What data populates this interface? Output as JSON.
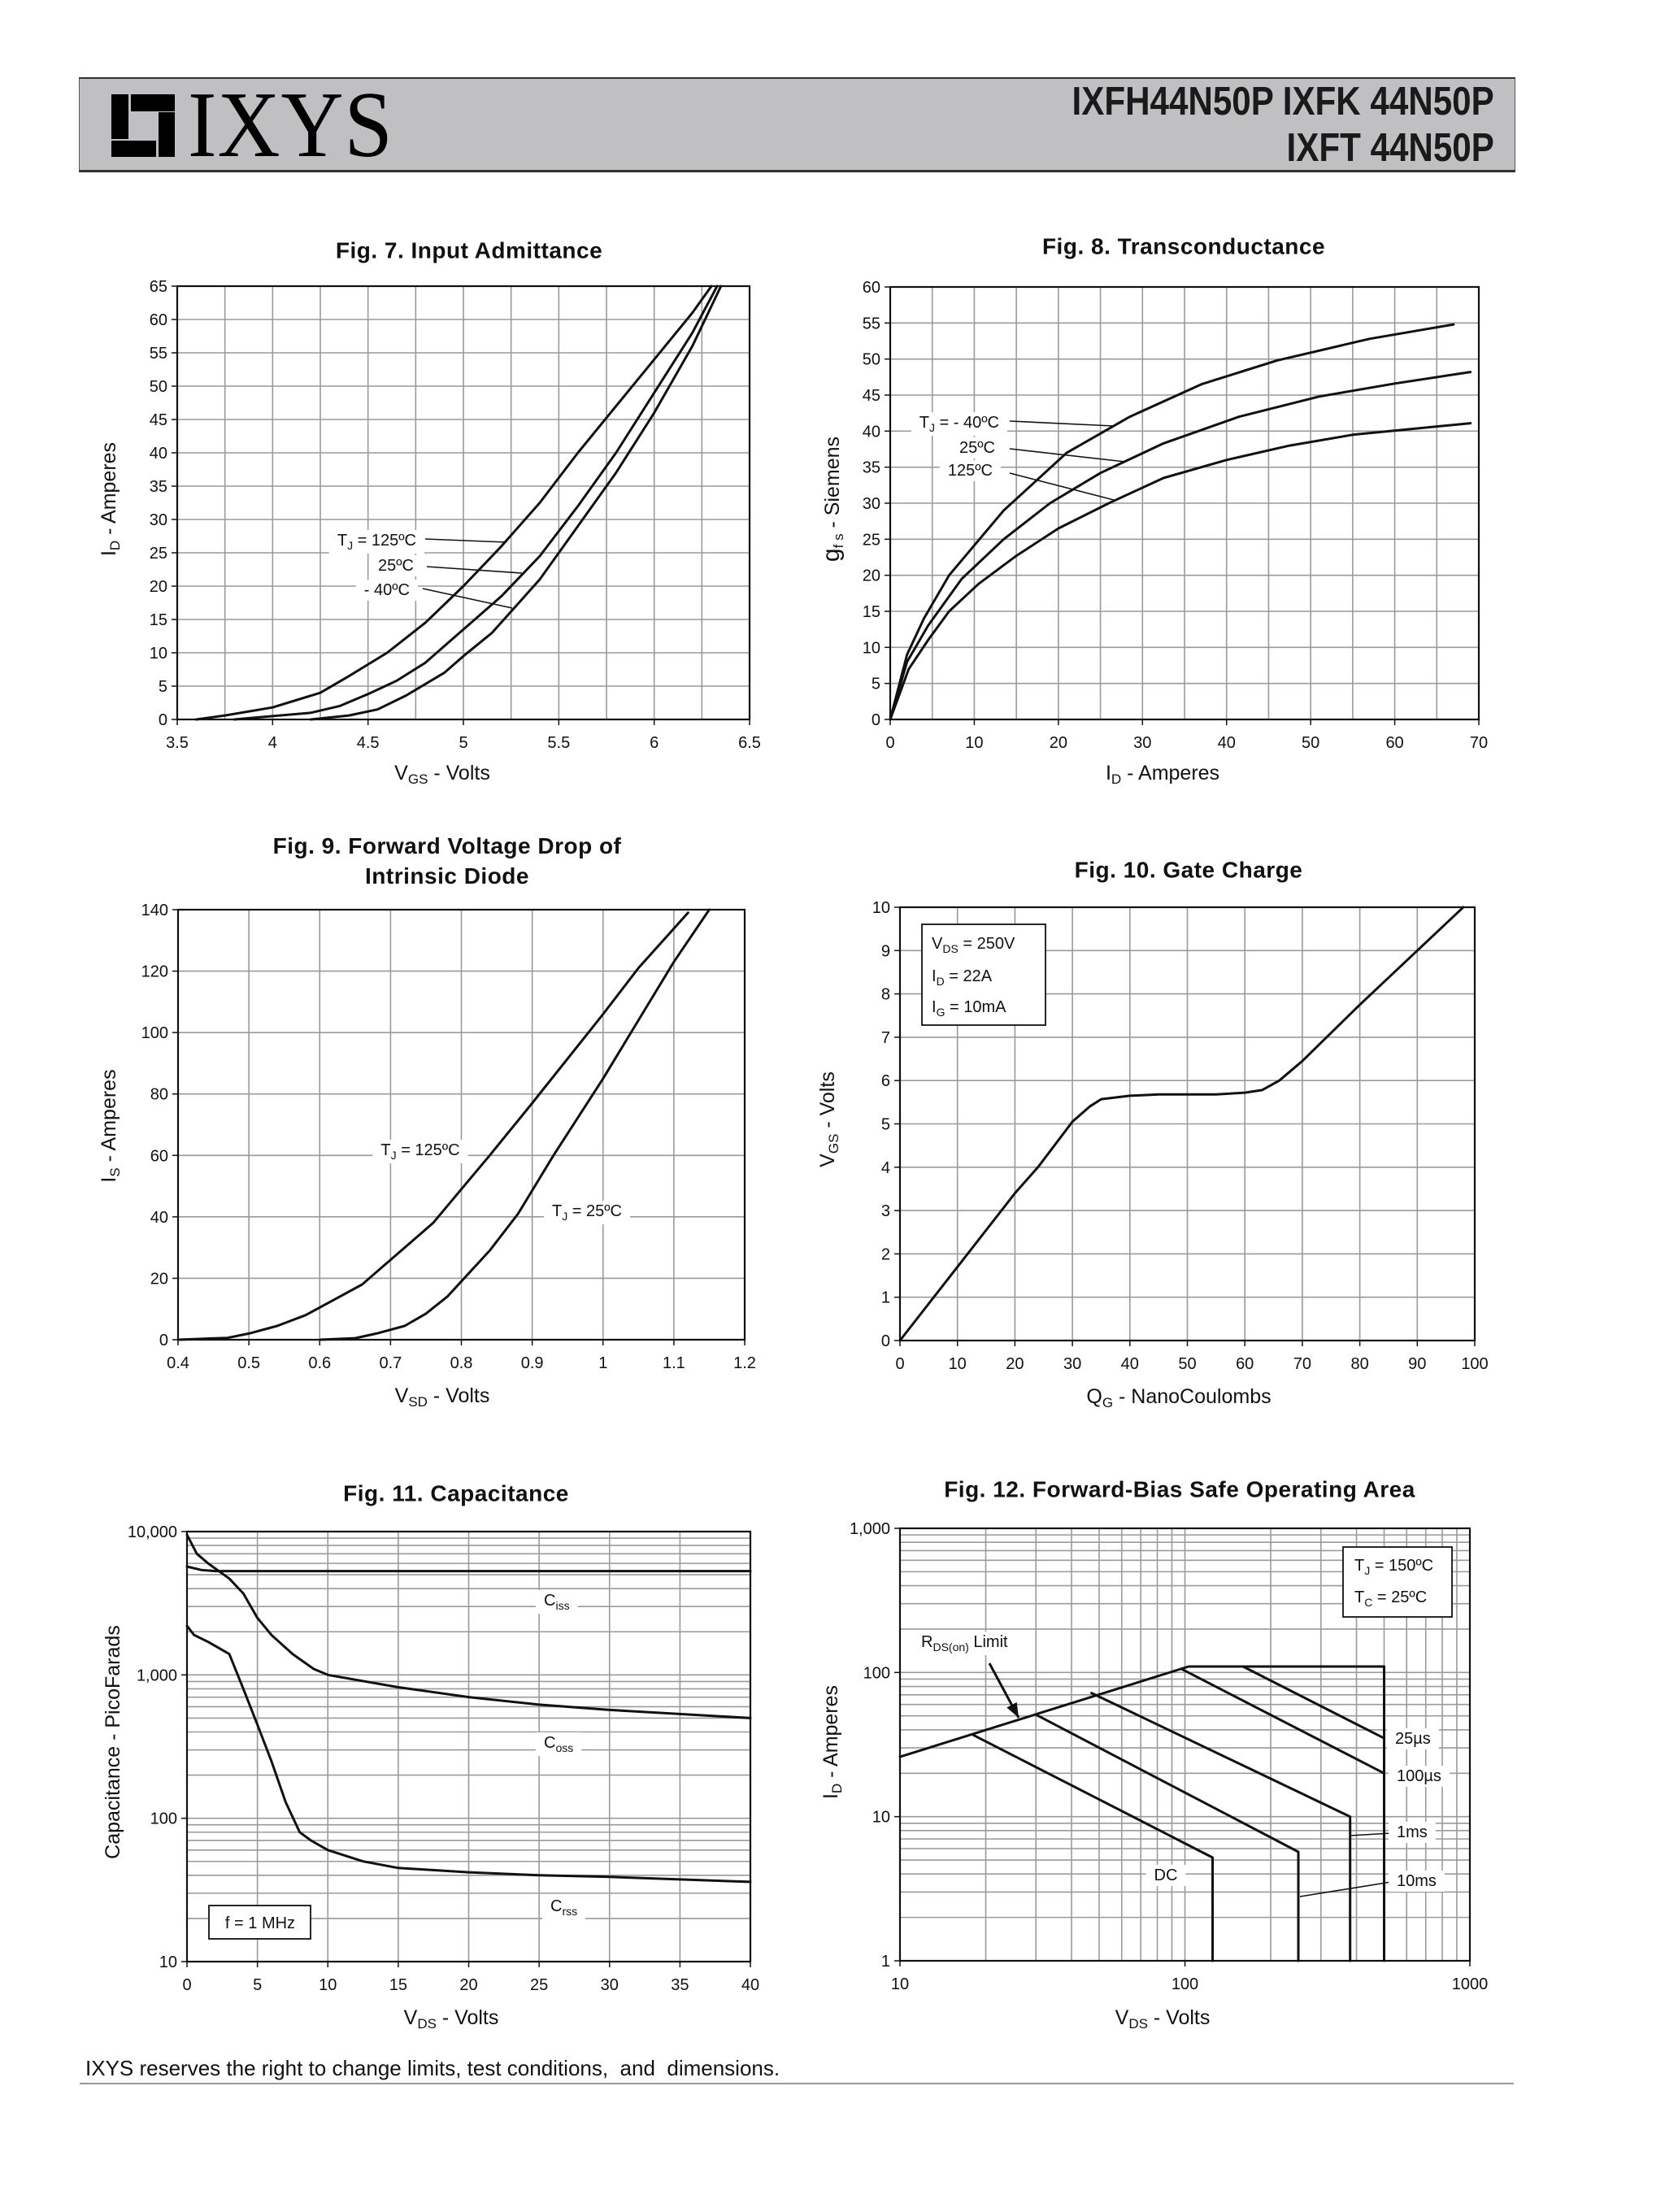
{
  "header": {
    "logo_text": "IXYS",
    "part_line1": "IXFH44N50P IXFK 44N50P",
    "part_line2": "IXFT 44N50P"
  },
  "footer": {
    "disclaimer": "IXYS reserves the right to change limits, test conditions,  and  dimensions."
  },
  "chart_data": [
    {
      "type": "line",
      "title": "Fig. 7. Input Admittance",
      "xlabel": {
        "main": "V",
        "sub": "GS",
        "rest": " - Volts"
      },
      "ylabel": {
        "main": "I",
        "sub": "D",
        "rest": " - Amperes"
      },
      "xscale": "linear",
      "yscale": "linear",
      "xlim": [
        3.5,
        6.5
      ],
      "ylim": [
        0,
        65
      ],
      "grid": true,
      "xticks": [
        3.5,
        4,
        4.5,
        5,
        5.5,
        6,
        6.5
      ],
      "xtick_labels": [
        "3.5",
        "4",
        "4.5",
        "5",
        "5.5",
        "6",
        "6.5"
      ],
      "yticks": [
        0,
        5,
        10,
        15,
        20,
        25,
        30,
        35,
        40,
        45,
        50,
        55,
        60,
        65
      ],
      "ytick_labels": [
        "0",
        "5",
        "10",
        "15",
        "20",
        "25",
        "30",
        "35",
        "40",
        "45",
        "50",
        "55",
        "60",
        "65"
      ],
      "series": [
        {
          "name": "TJ = 125ºC",
          "x": [
            3.6,
            3.75,
            4.0,
            4.25,
            4.4,
            4.6,
            4.8,
            5.0,
            5.2,
            5.4,
            5.6,
            5.8,
            6.0,
            6.2,
            6.3
          ],
          "y": [
            0,
            0.6,
            1.8,
            4,
            6.5,
            10,
            14.5,
            20,
            26,
            32.5,
            40,
            47,
            54,
            61,
            65
          ]
        },
        {
          "name": "25ºC",
          "x": [
            3.8,
            4.0,
            4.2,
            4.35,
            4.5,
            4.65,
            4.8,
            5.0,
            5.2,
            5.4,
            5.6,
            5.8,
            6.0,
            6.2,
            6.33
          ],
          "y": [
            0,
            0.5,
            1,
            2,
            3.8,
            5.8,
            8.5,
            13.5,
            18.5,
            24.5,
            32,
            40,
            49,
            58,
            65
          ]
        },
        {
          "name": "- 40ºC",
          "x": [
            4.2,
            4.4,
            4.55,
            4.7,
            4.9,
            5.0,
            5.15,
            5.4,
            5.6,
            5.8,
            6.0,
            6.2,
            6.35
          ],
          "y": [
            0,
            0.6,
            1.5,
            3.6,
            7,
            9.5,
            13,
            21,
            29,
            37,
            46,
            56,
            65
          ]
        }
      ],
      "annotations": [
        {
          "pre": "T",
          "sub": "J",
          "post": " = 125ºC"
        },
        {
          "pre": "25ºC",
          "sub": "",
          "post": ""
        },
        {
          "pre": "- 40ºC",
          "sub": "",
          "post": ""
        }
      ]
    },
    {
      "type": "line",
      "title": "Fig. 8. Transconductance",
      "xlabel": {
        "main": "I",
        "sub": "D",
        "rest": " - Amperes"
      },
      "ylabel": {
        "main": "g",
        "sub": "f s",
        "rest": " - Siemens"
      },
      "xscale": "linear",
      "yscale": "linear",
      "xlim": [
        0,
        70
      ],
      "ylim": [
        0,
        60
      ],
      "grid": true,
      "xticks": [
        0,
        10,
        20,
        30,
        40,
        50,
        60,
        70
      ],
      "xtick_labels": [
        "0",
        "10",
        "20",
        "30",
        "40",
        "50",
        "60",
        "70"
      ],
      "yticks": [
        0,
        5,
        10,
        15,
        20,
        25,
        30,
        35,
        40,
        45,
        50,
        55,
        60
      ],
      "ytick_labels": [
        "0",
        "5",
        "10",
        "15",
        "20",
        "25",
        "30",
        "35",
        "40",
        "45",
        "50",
        "55",
        "60"
      ],
      "series": [
        {
          "name": "TJ = - 40ºC",
          "x": [
            0,
            2,
            4,
            7,
            13.5,
            21,
            28.5,
            37,
            46,
            57,
            67
          ],
          "y": [
            0,
            9,
            14,
            20,
            29,
            37,
            42,
            46.5,
            49.8,
            52.8,
            54.8
          ]
        },
        {
          "name": "25ºC",
          "x": [
            0,
            2,
            4.5,
            8.5,
            13.5,
            19,
            25,
            32.5,
            41.5,
            51,
            60,
            69
          ],
          "y": [
            0,
            8,
            13,
            19.5,
            25,
            30,
            34.2,
            38.3,
            42,
            44.8,
            46.6,
            48.2
          ]
        },
        {
          "name": "125ºC",
          "x": [
            0,
            2.2,
            4.5,
            7,
            10.5,
            15,
            20,
            26,
            32.5,
            40,
            47.5,
            55,
            69
          ],
          "y": [
            0,
            7,
            11,
            15,
            18.8,
            22.7,
            26.5,
            30,
            33.5,
            36,
            38,
            39.5,
            41.1
          ]
        }
      ],
      "annotations": [
        {
          "pre": "T",
          "sub": "J",
          "post": " = - 40ºC"
        },
        {
          "pre": "25ºC",
          "sub": "",
          "post": ""
        },
        {
          "pre": "125ºC",
          "sub": "",
          "post": ""
        }
      ]
    },
    {
      "type": "line",
      "title": "Fig. 9. Forward Voltage Drop of\nIntrinsic Diode",
      "xlabel": {
        "main": "V",
        "sub": "SD",
        "rest": " - Volts"
      },
      "ylabel": {
        "main": "I",
        "sub": "S",
        "rest": " - Amperes"
      },
      "xscale": "linear",
      "yscale": "linear",
      "xlim": [
        0.4,
        1.2
      ],
      "ylim": [
        0,
        140
      ],
      "grid": true,
      "xticks": [
        0.4,
        0.5,
        0.6,
        0.7,
        0.8,
        0.9,
        1.0,
        1.1,
        1.2
      ],
      "xtick_labels": [
        "0.4",
        "0.5",
        "0.6",
        "0.7",
        "0.8",
        "0.9",
        "1",
        "1.1",
        "1.2"
      ],
      "yticks": [
        0,
        20,
        40,
        60,
        80,
        100,
        120,
        140
      ],
      "ytick_labels": [
        "0",
        "20",
        "40",
        "60",
        "80",
        "100",
        "120",
        "140"
      ],
      "series": [
        {
          "name": "TJ = 125ºC",
          "x": [
            0.4,
            0.47,
            0.5,
            0.54,
            0.58,
            0.62,
            0.66,
            0.69,
            0.76,
            0.8,
            0.84,
            0.9,
            1.0,
            1.05,
            1.12
          ],
          "y": [
            0,
            0.6,
            2,
            4.5,
            8,
            13,
            18,
            24,
            38,
            49,
            60,
            77,
            106,
            121,
            139
          ]
        },
        {
          "name": "TJ = 25ºC",
          "x": [
            0.6,
            0.65,
            0.68,
            0.72,
            0.75,
            0.78,
            0.8,
            0.84,
            0.88,
            0.93,
            1.0,
            1.05,
            1.1,
            1.15
          ],
          "y": [
            0,
            0.5,
            2,
            4.5,
            8.5,
            14,
            19,
            29,
            41,
            60,
            85,
            104,
            123,
            140
          ]
        }
      ],
      "annotations": [
        {
          "pre": "T",
          "sub": "J",
          "post": " = 125ºC"
        },
        {
          "pre": "T",
          "sub": "J",
          "post": "  = 25ºC"
        }
      ]
    },
    {
      "type": "line",
      "title": "Fig. 10. Gate Charge",
      "xlabel": {
        "main": "Q",
        "sub": "G",
        "rest": " - NanoCoulombs"
      },
      "ylabel": {
        "main": "V",
        "sub": "GS",
        "rest": " - Volts"
      },
      "xscale": "linear",
      "yscale": "linear",
      "xlim": [
        0,
        100
      ],
      "ylim": [
        0,
        10
      ],
      "grid": true,
      "xticks": [
        0,
        10,
        20,
        30,
        40,
        50,
        60,
        70,
        80,
        90,
        100
      ],
      "xtick_labels": [
        "0",
        "10",
        "20",
        "30",
        "40",
        "50",
        "60",
        "70",
        "80",
        "90",
        "100"
      ],
      "yticks": [
        0,
        1,
        2,
        3,
        4,
        5,
        6,
        7,
        8,
        9,
        10
      ],
      "ytick_labels": [
        "0",
        "1",
        "2",
        "3",
        "4",
        "5",
        "6",
        "7",
        "8",
        "9",
        "10"
      ],
      "series": [
        {
          "name": "VGS",
          "x": [
            0,
            10,
            20,
            24,
            30,
            33,
            35,
            40,
            45,
            55,
            60,
            63,
            66,
            70,
            80,
            90,
            98
          ],
          "y": [
            0,
            1.7,
            3.4,
            4.0,
            5.05,
            5.4,
            5.57,
            5.65,
            5.68,
            5.68,
            5.72,
            5.78,
            6.0,
            6.45,
            7.75,
            9.0,
            10.0
          ]
        }
      ],
      "annotations": [
        {
          "pre": "V",
          "sub": "DS",
          "post": "  = 250V"
        },
        {
          "pre": "I",
          "sub": "D",
          "post": " = 22A"
        },
        {
          "pre": "I",
          "sub": "G",
          "post": " = 10mA"
        }
      ]
    },
    {
      "type": "line",
      "title": "Fig. 11. Capacitance",
      "xlabel": {
        "main": "V",
        "sub": "DS",
        "rest": " - Volts"
      },
      "ylabel": {
        "main": "Capacitance - PicoFarads",
        "sub": "",
        "rest": ""
      },
      "xscale": "linear",
      "yscale": "log",
      "xlim": [
        0,
        40
      ],
      "ylim": [
        10,
        10000
      ],
      "grid": true,
      "xticks": [
        0,
        5,
        10,
        15,
        20,
        25,
        30,
        35,
        40
      ],
      "xtick_labels": [
        "0",
        "5",
        "10",
        "15",
        "20",
        "25",
        "30",
        "35",
        "40"
      ],
      "yticks": [
        10,
        100,
        1000,
        10000
      ],
      "ytick_labels": [
        "10",
        "100",
        "1,000",
        "10,000"
      ],
      "series": [
        {
          "name": "Ciss",
          "x": [
            0,
            1,
            2,
            40
          ],
          "y": [
            5700,
            5400,
            5300,
            5300
          ]
        },
        {
          "name": "Coss",
          "x": [
            0,
            0.7,
            1.5,
            3,
            4,
            5,
            6,
            7.5,
            9,
            10,
            15,
            20,
            25,
            30,
            40
          ],
          "y": [
            9500,
            7000,
            6000,
            4700,
            3700,
            2500,
            1900,
            1400,
            1100,
            1000,
            820,
            700,
            620,
            570,
            500
          ]
        },
        {
          "name": "Crss",
          "x": [
            0,
            0.5,
            1.5,
            3,
            4,
            5,
            6,
            7,
            8,
            8.8,
            10,
            12.5,
            15,
            20,
            25,
            30,
            40
          ],
          "y": [
            2200,
            1900,
            1700,
            1400,
            800,
            450,
            250,
            130,
            80,
            70,
            60,
            50,
            45,
            42,
            40,
            39,
            36
          ]
        }
      ],
      "annotations": [
        {
          "pre": "C",
          "sub": "iss",
          "post": ""
        },
        {
          "pre": "C",
          "sub": "oss",
          "post": ""
        },
        {
          "pre": "C",
          "sub": "rss",
          "post": ""
        },
        {
          "pre": "f = 1 MHz",
          "sub": "",
          "post": ""
        }
      ]
    },
    {
      "type": "line",
      "title": "Fig. 12. Forward-Bias Safe Operating Area",
      "xlabel": {
        "main": "V",
        "sub": "DS",
        "rest": " - Volts"
      },
      "ylabel": {
        "main": "I",
        "sub": "D",
        "rest": " - Amperes"
      },
      "xscale": "log",
      "yscale": "log",
      "xlim": [
        10,
        1000
      ],
      "ylim": [
        1,
        1000
      ],
      "grid": true,
      "xticks": [
        10,
        100,
        1000
      ],
      "xtick_labels": [
        "10",
        "100",
        "1000"
      ],
      "yticks": [
        1,
        10,
        100,
        1000
      ],
      "ytick_labels": [
        "1",
        "10",
        "100",
        "1,000"
      ],
      "series": [
        {
          "name": "25µs",
          "x": [
            160,
            500
          ],
          "y": [
            110,
            35
          ]
        },
        {
          "name": "RDS(on) Limit / envelope",
          "x": [
            10,
            103,
            500,
            500
          ],
          "y": [
            26,
            110,
            110,
            1
          ]
        },
        {
          "name": "100µs",
          "x": [
            97,
            500
          ],
          "y": [
            106,
            20
          ]
        },
        {
          "name": "1ms",
          "x": [
            47,
            380,
            380
          ],
          "y": [
            72,
            10,
            1
          ]
        },
        {
          "name": "10ms",
          "x": [
            30,
            250,
            250
          ],
          "y": [
            51,
            5.7,
            1
          ]
        },
        {
          "name": "DC",
          "x": [
            18,
            125,
            125
          ],
          "y": [
            37,
            5.2,
            1
          ]
        }
      ],
      "annotations": [
        {
          "pre": "T",
          "sub": "J",
          "post": " = 150ºC"
        },
        {
          "pre": "T",
          "sub": "C",
          "post": " = 25ºC"
        },
        {
          "pre": "R",
          "sub": "DS(on)",
          "post": " Limit"
        },
        {
          "pre": "25µs",
          "sub": "",
          "post": ""
        },
        {
          "pre": "100µs",
          "sub": "",
          "post": ""
        },
        {
          "pre": "1ms",
          "sub": "",
          "post": ""
        },
        {
          "pre": "10ms",
          "sub": "",
          "post": ""
        },
        {
          "pre": "DC",
          "sub": "",
          "post": ""
        }
      ]
    }
  ]
}
